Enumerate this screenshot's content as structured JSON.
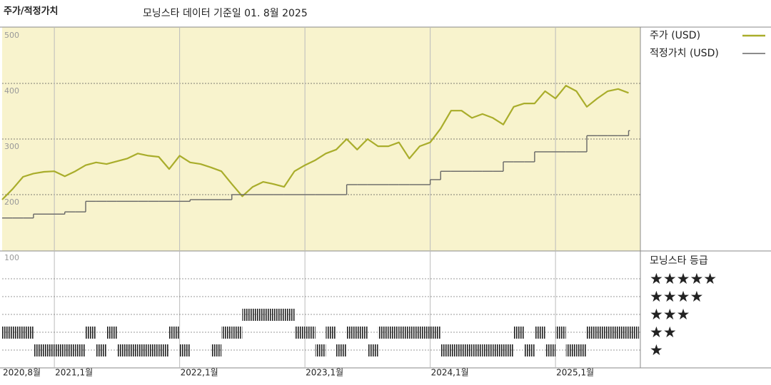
{
  "chart_data": {
    "type": "line",
    "title": "주가/적정가치",
    "subtitle": "모닝스타 데이터 기준일 01. 8월 2025",
    "x": [
      "2020-08",
      "2020-09",
      "2020-10",
      "2020-11",
      "2020-12",
      "2021-01",
      "2021-02",
      "2021-03",
      "2021-04",
      "2021-05",
      "2021-06",
      "2021-07",
      "2021-08",
      "2021-09",
      "2021-10",
      "2021-11",
      "2021-12",
      "2022-01",
      "2022-02",
      "2022-03",
      "2022-04",
      "2022-05",
      "2022-06",
      "2022-07",
      "2022-08",
      "2022-09",
      "2022-10",
      "2022-11",
      "2022-12",
      "2023-01",
      "2023-02",
      "2023-03",
      "2023-04",
      "2023-05",
      "2023-06",
      "2023-07",
      "2023-08",
      "2023-09",
      "2023-10",
      "2023-11",
      "2023-12",
      "2024-01",
      "2024-02",
      "2024-03",
      "2024-04",
      "2024-05",
      "2024-06",
      "2024-07",
      "2024-08",
      "2024-09",
      "2024-10",
      "2024-11",
      "2024-12",
      "2025-01",
      "2025-02",
      "2025-03",
      "2025-04",
      "2025-05",
      "2025-06",
      "2025-07",
      "2025-08"
    ],
    "series": [
      {
        "name": "주가 (USD)",
        "color": "#a9ad2b",
        "values": [
          191,
          210,
          232,
          238,
          241,
          242,
          233,
          242,
          253,
          258,
          255,
          260,
          265,
          274,
          270,
          268,
          246,
          270,
          258,
          255,
          249,
          242,
          219,
          197,
          214,
          223,
          219,
          214,
          242,
          253,
          262,
          274,
          281,
          300,
          281,
          300,
          287,
          287,
          294,
          265,
          287,
          294,
          319,
          351,
          351,
          338,
          345,
          338,
          326,
          358,
          364,
          364,
          386,
          373,
          396,
          386,
          358,
          373,
          386,
          390,
          383
        ]
      },
      {
        "name": "적정가치 (USD)",
        "color": "#666666",
        "step": true,
        "values": [
          158,
          158,
          158,
          165,
          165,
          165,
          169,
          169,
          188,
          188,
          188,
          188,
          188,
          188,
          188,
          188,
          188,
          188,
          191,
          191,
          191,
          191,
          200,
          200,
          200,
          200,
          200,
          200,
          200,
          200,
          200,
          200,
          200,
          218,
          218,
          218,
          218,
          218,
          218,
          218,
          218,
          227,
          242,
          242,
          242,
          242,
          242,
          242,
          259,
          259,
          259,
          277,
          277,
          277,
          277,
          277,
          306,
          306,
          306,
          306,
          315
        ]
      }
    ],
    "xlim": [
      "2020-08",
      "2025-08"
    ],
    "xticks": [
      {
        "value": "2020-08",
        "label": "2020,8월"
      },
      {
        "value": "2021-01",
        "label": "2021,1월"
      },
      {
        "value": "2022-01",
        "label": "2022,1월"
      },
      {
        "value": "2023-01",
        "label": "2023,1월"
      },
      {
        "value": "2024-01",
        "label": "2024,1월"
      },
      {
        "value": "2025-01",
        "label": "2025,1월"
      }
    ],
    "ylim": [
      100,
      500
    ],
    "yticks": [
      100,
      200,
      300,
      400,
      500
    ],
    "grid": true,
    "rating": {
      "title": "모닝스타 등급",
      "levels": [
        "★★★★★",
        "★★★★",
        "★★★",
        "★★",
        "★"
      ],
      "values": [
        2,
        2,
        2,
        1,
        1,
        1,
        1,
        1,
        2,
        1,
        2,
        1,
        1,
        1,
        1,
        1,
        2,
        1,
        null,
        null,
        1,
        2,
        2,
        3,
        3,
        3,
        3,
        3,
        2,
        2,
        1,
        2,
        1,
        2,
        2,
        1,
        2,
        2,
        2,
        2,
        2,
        2,
        1,
        1,
        1,
        1,
        1,
        1,
        1,
        2,
        1,
        2,
        1,
        2,
        1,
        1,
        2,
        2,
        2,
        2,
        2
      ]
    }
  }
}
